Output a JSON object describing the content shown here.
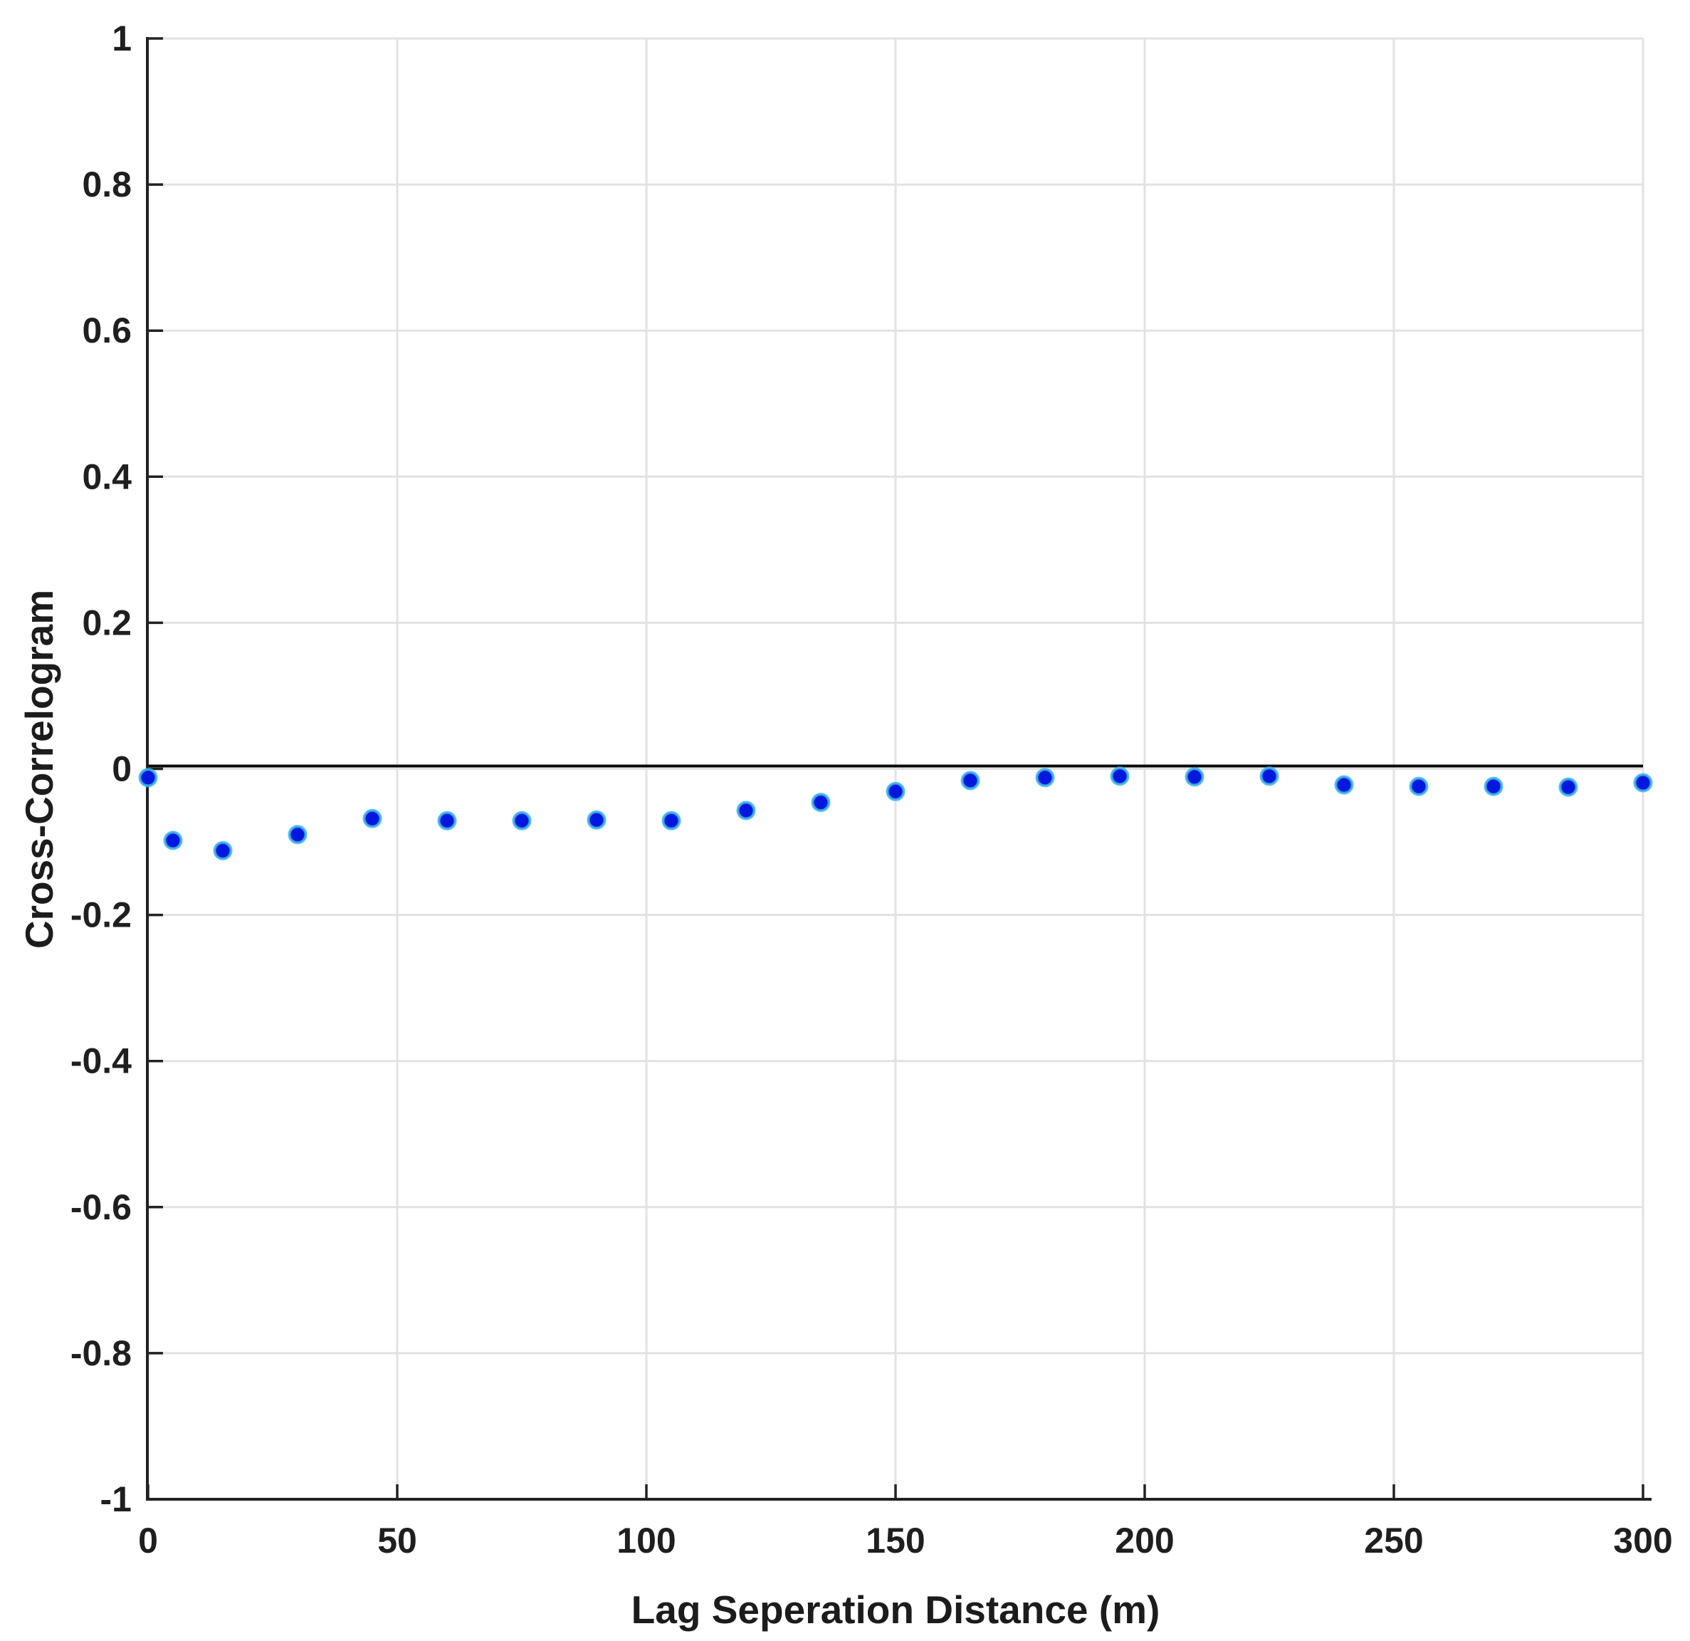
{
  "chart_data": {
    "type": "scatter",
    "title": "",
    "xlabel": "Lag Seperation Distance (m)",
    "ylabel": "Cross-Correlogram",
    "xlim": [
      0,
      300
    ],
    "ylim": [
      -1,
      1
    ],
    "xticks": [
      0,
      50,
      100,
      150,
      200,
      250,
      300
    ],
    "xtick_labels": [
      "0",
      "50",
      "100",
      "150",
      "200",
      "250",
      "300"
    ],
    "yticks": [
      1,
      0.8,
      0.6,
      0.4,
      0.2,
      0,
      -0.2,
      -0.4,
      -0.6,
      -0.8,
      -1
    ],
    "ytick_labels": [
      "1",
      "0.8",
      "0.6",
      "0.4",
      "0.2",
      "0",
      "-0.2",
      "-0.4",
      "-0.6",
      "-0.8",
      "-1"
    ],
    "grid": "on",
    "legend": "none",
    "series": [
      {
        "name": "cross-correlogram",
        "marker": "circle",
        "x": [
          0,
          5,
          15,
          30,
          45,
          60,
          75,
          90,
          105,
          120,
          135,
          150,
          165,
          180,
          195,
          210,
          225,
          240,
          255,
          270,
          285,
          300
        ],
        "y": [
          -0.012,
          -0.098,
          -0.112,
          -0.09,
          -0.068,
          -0.071,
          -0.071,
          -0.07,
          -0.071,
          -0.057,
          -0.046,
          -0.031,
          -0.016,
          -0.012,
          -0.01,
          -0.011,
          -0.01,
          -0.022,
          -0.024,
          -0.024,
          -0.025,
          -0.019
        ]
      }
    ],
    "reference_line": {
      "y": 0
    }
  },
  "colors": {
    "background": "#ffffff",
    "grid": "#e2e2e2",
    "axis": "#222222",
    "tick_text": "#1f1f1f",
    "marker_fill": "#0017dd",
    "marker_edge": "#3db6e8",
    "reference_line": "#0a0a0a"
  }
}
